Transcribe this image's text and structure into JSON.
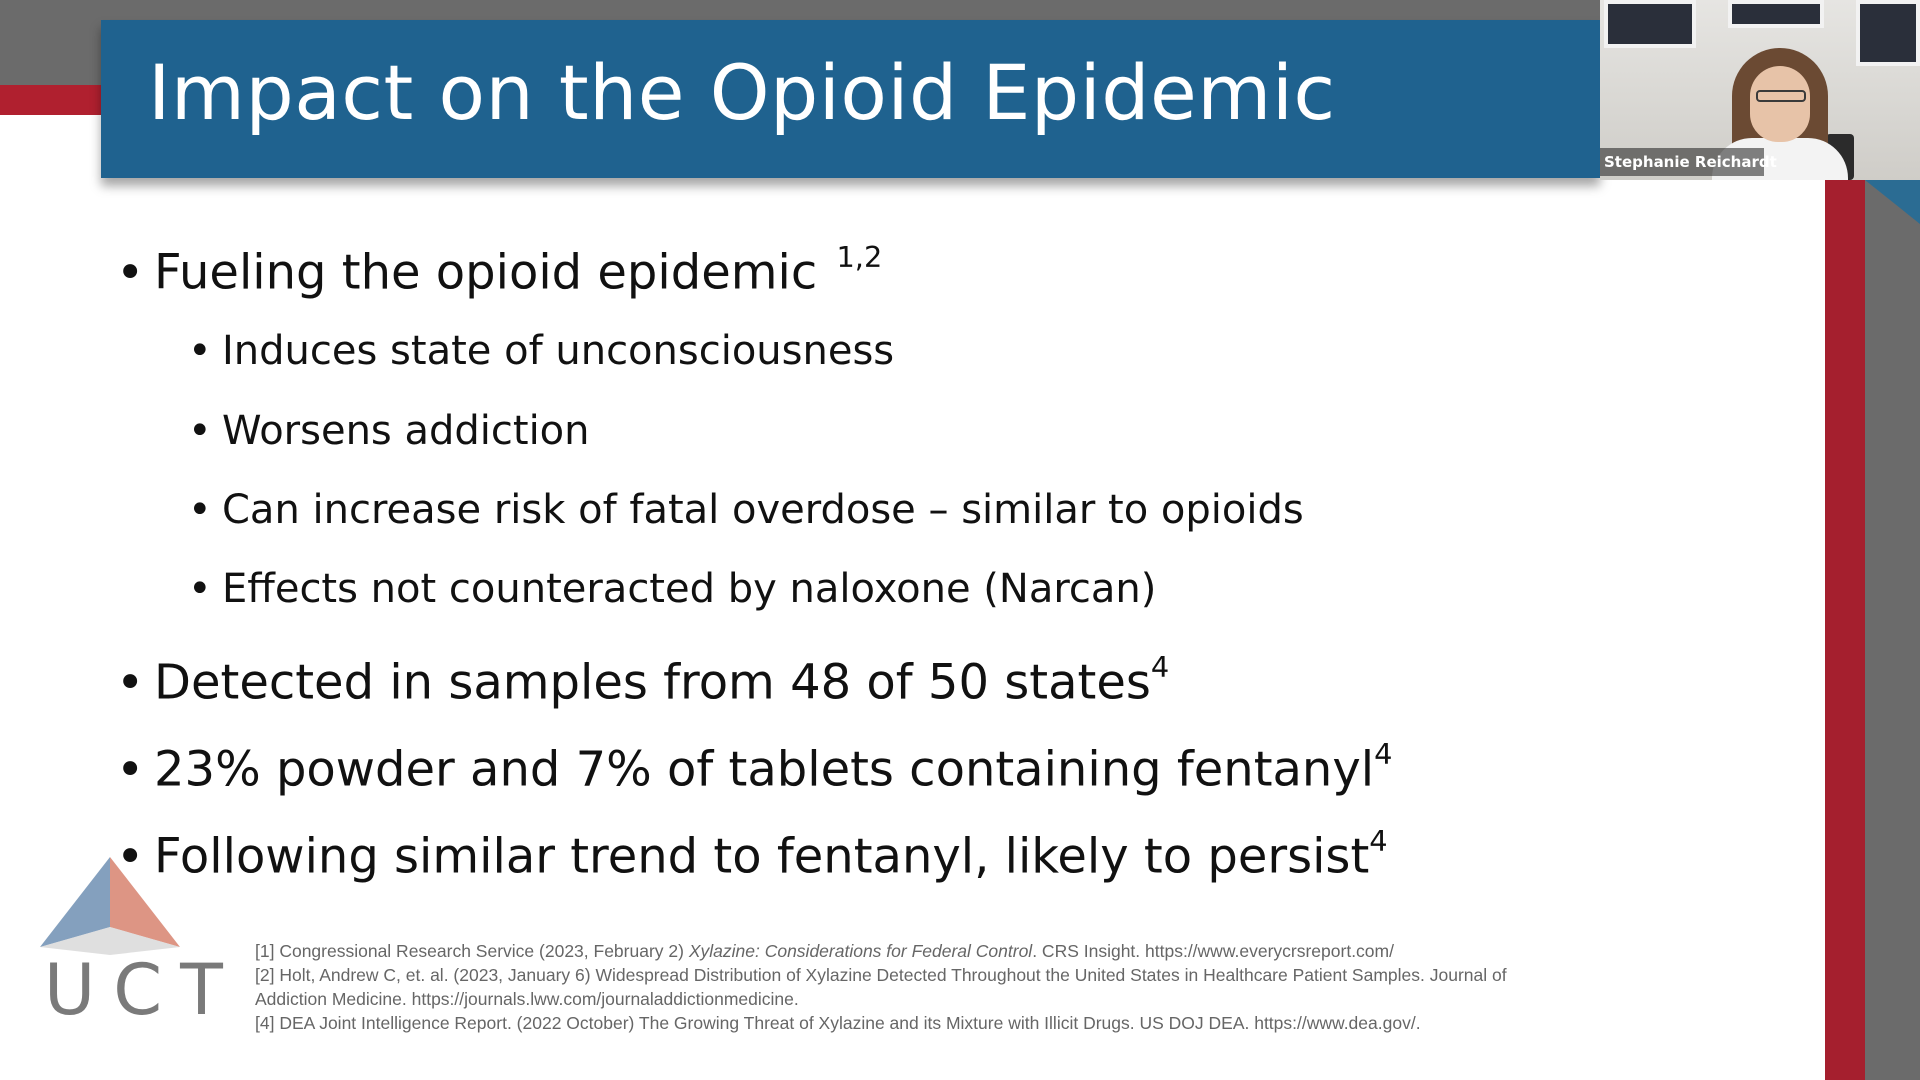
{
  "slide": {
    "title": "Impact on the Opioid Epidemic",
    "bullets": [
      {
        "text": "Fueling the opioid epidemic",
        "sup": "1,2"
      },
      {
        "text": "Induces state of unconsciousness",
        "sub": true
      },
      {
        "text": "Worsens addiction",
        "sub": true
      },
      {
        "text": "Can increase risk of fatal overdose – similar to opioids",
        "sub": true
      },
      {
        "text": "Effects not counteracted by naloxone (Narcan)",
        "sub": true
      },
      {
        "text": "Detected in samples from 48 of 50 states",
        "sup": "4"
      },
      {
        "text": "23% powder and 7% of tablets containing fentanyl",
        "sup": "4"
      },
      {
        "text": "Following similar trend to fentanyl, likely to persist",
        "sup": "4"
      }
    ],
    "bullet_glyph": "•",
    "logo_text": "UCT",
    "references": {
      "r1_pre": "[1] Congressional Research Service (2023, February 2) ",
      "r1_italic": "Xylazine: Considerations for Federal Control",
      "r1_post": ". CRS Insight. https://www.everycrsreport.com/",
      "r2_line1": "[2] Holt, Andrew C, et. al. (2023, January 6) Widespread Distribution of Xylazine Detected Throughout the United States in Healthcare Patient Samples. Journal of",
      "r2_line2": "Addiction Medicine. https://journals.lww.com/journaladdictionmedicine.",
      "r4": "[4] DEA Joint Intelligence Report. (2022 October) The Growing Threat of Xylazine and its Mixture with Illicit Drugs. US DOJ DEA. https://www.dea.gov/."
    }
  },
  "webcam": {
    "participant_name": "Stephanie Reichardt"
  },
  "colors": {
    "title_bar": "#1f628f",
    "accent_red": "#a51f2e",
    "frame_gray": "#6b6b6b",
    "logo_blue": "#6f8fb3",
    "logo_red": "#d7826f"
  }
}
